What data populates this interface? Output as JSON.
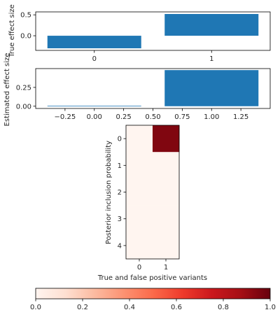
{
  "chart_data": [
    {
      "type": "bar",
      "ylabel": "True effect size",
      "categories": [
        "0",
        "1"
      ],
      "x": [
        0,
        1
      ],
      "values": [
        -0.3,
        0.52
      ],
      "xlim": [
        -0.5,
        1.5
      ],
      "ylim": [
        -0.35,
        0.57
      ],
      "xticks": [
        "0",
        "1"
      ],
      "yticks": [
        "0.5",
        "0.0"
      ],
      "bar_color": "#1f77b4",
      "grid": false
    },
    {
      "type": "bar",
      "ylabel": "Estimated effect size",
      "x": [
        0,
        1
      ],
      "values": [
        0.005,
        0.48
      ],
      "xlim": [
        -0.5,
        1.5
      ],
      "ylim": [
        -0.03,
        0.5
      ],
      "xticks": [
        "−0.25",
        "0.00",
        "0.25",
        "0.50",
        "0.75",
        "1.00",
        "1.25"
      ],
      "yticks": [
        "0.25",
        "0.00"
      ],
      "bar_color": "#1f77b4",
      "grid": false
    },
    {
      "type": "heatmap",
      "xlabel": "True and false positive variants",
      "ylabel": "Posterior inclusion probability",
      "colormap": "Reds",
      "x_ticks": [
        "0",
        "1"
      ],
      "y_ticks": [
        "0",
        "1",
        "2",
        "3",
        "4"
      ],
      "values": [
        [
          0.0,
          0.95
        ],
        [
          0.0,
          0.0
        ],
        [
          0.0,
          0.0
        ],
        [
          0.0,
          0.0
        ],
        [
          0.0,
          0.0
        ]
      ],
      "colorbar": {
        "range": [
          0,
          1
        ],
        "ticks": [
          "0.0",
          "0.2",
          "0.4",
          "0.6",
          "0.8",
          "1.0"
        ],
        "placement": "bottom"
      }
    }
  ]
}
